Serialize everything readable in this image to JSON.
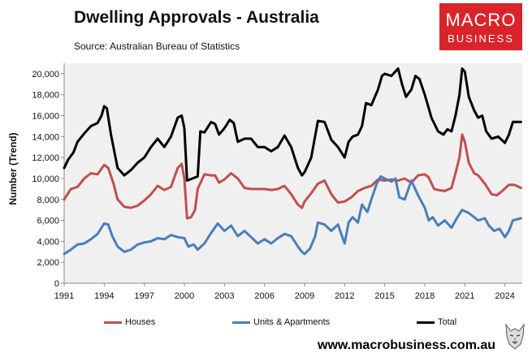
{
  "header": {
    "title": "Dwelling Approvals - Australia",
    "subtitle": "Source: Australian Bureau of Statistics"
  },
  "logo": {
    "line1": "MACRO",
    "line2": "BUSINESS",
    "color": "#d9242b"
  },
  "footer": {
    "url": "www.macrobusiness.com.au"
  },
  "chart_data": {
    "type": "line",
    "title": "Dwelling Approvals - Australia",
    "xlabel": "",
    "ylabel": "Number (Trend)",
    "xlim": [
      1991,
      2025.3
    ],
    "ylim": [
      0,
      21000
    ],
    "x_ticks": [
      1991,
      1994,
      1997,
      2000,
      2003,
      2006,
      2009,
      2012,
      2015,
      2018,
      2021,
      2024
    ],
    "y_ticks": [
      0,
      2000,
      4000,
      6000,
      8000,
      10000,
      12000,
      14000,
      16000,
      18000,
      20000
    ],
    "y_tick_labels": [
      "0",
      "2,000",
      "4,000",
      "6,000",
      "8,000",
      "10,000",
      "12,000",
      "14,000",
      "16,000",
      "18,000",
      "20,000"
    ],
    "plot_background": "#f0f0f0",
    "grid": false,
    "legend_position": "bottom",
    "series": [
      {
        "name": "Houses",
        "color": "#c0504d",
        "points": [
          [
            1991,
            8000
          ],
          [
            1991.5,
            9000
          ],
          [
            1992,
            9200
          ],
          [
            1992.5,
            10000
          ],
          [
            1993,
            10500
          ],
          [
            1993.5,
            10400
          ],
          [
            1994,
            11300
          ],
          [
            1994.3,
            11000
          ],
          [
            1994.7,
            9500
          ],
          [
            1995,
            8000
          ],
          [
            1995.5,
            7300
          ],
          [
            1996,
            7200
          ],
          [
            1996.5,
            7400
          ],
          [
            1997,
            7900
          ],
          [
            1997.5,
            8500
          ],
          [
            1998,
            9300
          ],
          [
            1998.5,
            8900
          ],
          [
            1999,
            9200
          ],
          [
            1999.5,
            11000
          ],
          [
            1999.8,
            11400
          ],
          [
            2000,
            10000
          ],
          [
            2000.2,
            6200
          ],
          [
            2000.5,
            6300
          ],
          [
            2000.8,
            7000
          ],
          [
            2001,
            9000
          ],
          [
            2001.5,
            10400
          ],
          [
            2002,
            10300
          ],
          [
            2002.3,
            10300
          ],
          [
            2002.6,
            9600
          ],
          [
            2003,
            9900
          ],
          [
            2003.5,
            10500
          ],
          [
            2004,
            10000
          ],
          [
            2004.5,
            9100
          ],
          [
            2005,
            9000
          ],
          [
            2005.5,
            9000
          ],
          [
            2006,
            9000
          ],
          [
            2006.5,
            8900
          ],
          [
            2007,
            9000
          ],
          [
            2007.5,
            9300
          ],
          [
            2008,
            8500
          ],
          [
            2008.5,
            7500
          ],
          [
            2008.8,
            7200
          ],
          [
            2009,
            7800
          ],
          [
            2009.5,
            8600
          ],
          [
            2010,
            9500
          ],
          [
            2010.5,
            9800
          ],
          [
            2011,
            8500
          ],
          [
            2011.5,
            7700
          ],
          [
            2012,
            7800
          ],
          [
            2012.5,
            8200
          ],
          [
            2013,
            8800
          ],
          [
            2013.5,
            9100
          ],
          [
            2014,
            9300
          ],
          [
            2014.5,
            9900
          ],
          [
            2015,
            9800
          ],
          [
            2015.5,
            9900
          ],
          [
            2016,
            9800
          ],
          [
            2016.5,
            10000
          ],
          [
            2017,
            9600
          ],
          [
            2017.5,
            10300
          ],
          [
            2018,
            10400
          ],
          [
            2018.3,
            10100
          ],
          [
            2018.7,
            9000
          ],
          [
            2019,
            8900
          ],
          [
            2019.5,
            8800
          ],
          [
            2020,
            9100
          ],
          [
            2020.3,
            10500
          ],
          [
            2020.6,
            12000
          ],
          [
            2020.8,
            14200
          ],
          [
            2021,
            13500
          ],
          [
            2021.3,
            11500
          ],
          [
            2021.7,
            10500
          ],
          [
            2022,
            10300
          ],
          [
            2022.5,
            9500
          ],
          [
            2023,
            8500
          ],
          [
            2023.4,
            8400
          ],
          [
            2023.8,
            8800
          ],
          [
            2024.3,
            9400
          ],
          [
            2024.7,
            9400
          ],
          [
            2025.2,
            9100
          ]
        ]
      },
      {
        "name": "Units & Apartments",
        "color": "#4a7ebb",
        "points": [
          [
            1991,
            2800
          ],
          [
            1991.5,
            3200
          ],
          [
            1992,
            3700
          ],
          [
            1992.5,
            3800
          ],
          [
            1993,
            4200
          ],
          [
            1993.5,
            4700
          ],
          [
            1994,
            5700
          ],
          [
            1994.3,
            5600
          ],
          [
            1994.6,
            4500
          ],
          [
            1995,
            3500
          ],
          [
            1995.5,
            3000
          ],
          [
            1996,
            3200
          ],
          [
            1996.5,
            3700
          ],
          [
            1997,
            3900
          ],
          [
            1997.5,
            4000
          ],
          [
            1998,
            4300
          ],
          [
            1998.5,
            4200
          ],
          [
            1999,
            4600
          ],
          [
            1999.5,
            4400
          ],
          [
            2000,
            4300
          ],
          [
            2000.3,
            3500
          ],
          [
            2000.7,
            3700
          ],
          [
            2001,
            3200
          ],
          [
            2001.5,
            3800
          ],
          [
            2002,
            4800
          ],
          [
            2002.5,
            5700
          ],
          [
            2003,
            5000
          ],
          [
            2003.5,
            5500
          ],
          [
            2004,
            4500
          ],
          [
            2004.5,
            5000
          ],
          [
            2005,
            4400
          ],
          [
            2005.5,
            3800
          ],
          [
            2006,
            4200
          ],
          [
            2006.5,
            3800
          ],
          [
            2007,
            4300
          ],
          [
            2007.5,
            4700
          ],
          [
            2008,
            4500
          ],
          [
            2008.5,
            3500
          ],
          [
            2008.8,
            3000
          ],
          [
            2009,
            2800
          ],
          [
            2009.4,
            3300
          ],
          [
            2009.8,
            4500
          ],
          [
            2010,
            5800
          ],
          [
            2010.5,
            5600
          ],
          [
            2011,
            5000
          ],
          [
            2011.5,
            5600
          ],
          [
            2012,
            3800
          ],
          [
            2012.3,
            5800
          ],
          [
            2012.6,
            6300
          ],
          [
            2013,
            5800
          ],
          [
            2013.3,
            7500
          ],
          [
            2013.7,
            6800
          ],
          [
            2014,
            8000
          ],
          [
            2014.4,
            9500
          ],
          [
            2014.7,
            10200
          ],
          [
            2015,
            10000
          ],
          [
            2015.5,
            9700
          ],
          [
            2015.8,
            10000
          ],
          [
            2016.1,
            8200
          ],
          [
            2016.5,
            8000
          ],
          [
            2017,
            9800
          ],
          [
            2017.5,
            8400
          ],
          [
            2018,
            7200
          ],
          [
            2018.3,
            6000
          ],
          [
            2018.6,
            6300
          ],
          [
            2019,
            5500
          ],
          [
            2019.5,
            6000
          ],
          [
            2020,
            5300
          ],
          [
            2020.4,
            6200
          ],
          [
            2020.8,
            7000
          ],
          [
            2021.3,
            6700
          ],
          [
            2021.7,
            6300
          ],
          [
            2022,
            6000
          ],
          [
            2022.5,
            6200
          ],
          [
            2022.8,
            5500
          ],
          [
            2023.2,
            5000
          ],
          [
            2023.6,
            5200
          ],
          [
            2024,
            4400
          ],
          [
            2024.3,
            5000
          ],
          [
            2024.6,
            6000
          ],
          [
            2025.2,
            6200
          ]
        ]
      },
      {
        "name": "Total",
        "color": "#000000",
        "points": [
          [
            1991,
            11000
          ],
          [
            1991.3,
            11800
          ],
          [
            1991.7,
            12500
          ],
          [
            1992,
            13500
          ],
          [
            1992.5,
            14300
          ],
          [
            1993,
            15000
          ],
          [
            1993.5,
            15300
          ],
          [
            1993.8,
            16000
          ],
          [
            1994,
            16900
          ],
          [
            1994.2,
            16700
          ],
          [
            1994.5,
            14200
          ],
          [
            1995,
            11000
          ],
          [
            1995.5,
            10300
          ],
          [
            1996,
            10800
          ],
          [
            1996.5,
            11500
          ],
          [
            1997,
            12000
          ],
          [
            1997.5,
            13000
          ],
          [
            1998,
            13800
          ],
          [
            1998.5,
            13000
          ],
          [
            1999,
            14000
          ],
          [
            1999.5,
            15800
          ],
          [
            1999.8,
            16000
          ],
          [
            2000,
            14800
          ],
          [
            2000.2,
            9800
          ],
          [
            2000.6,
            10000
          ],
          [
            2001,
            10200
          ],
          [
            2001.2,
            14500
          ],
          [
            2001.5,
            14400
          ],
          [
            2002,
            15400
          ],
          [
            2002.3,
            15200
          ],
          [
            2002.6,
            14200
          ],
          [
            2003,
            14800
          ],
          [
            2003.4,
            15600
          ],
          [
            2003.7,
            15300
          ],
          [
            2004,
            13500
          ],
          [
            2004.5,
            13800
          ],
          [
            2005,
            13800
          ],
          [
            2005.5,
            13000
          ],
          [
            2006,
            13000
          ],
          [
            2006.5,
            12600
          ],
          [
            2007,
            13000
          ],
          [
            2007.5,
            14100
          ],
          [
            2008,
            13000
          ],
          [
            2008.5,
            11000
          ],
          [
            2008.8,
            10300
          ],
          [
            2009,
            10600
          ],
          [
            2009.5,
            12000
          ],
          [
            2010,
            15500
          ],
          [
            2010.5,
            15400
          ],
          [
            2011,
            13700
          ],
          [
            2011.5,
            13000
          ],
          [
            2012,
            12000
          ],
          [
            2012.3,
            13500
          ],
          [
            2012.6,
            14000
          ],
          [
            2013,
            14200
          ],
          [
            2013.3,
            15000
          ],
          [
            2013.6,
            17200
          ],
          [
            2014,
            17000
          ],
          [
            2014.5,
            18500
          ],
          [
            2014.8,
            19800
          ],
          [
            2015,
            20000
          ],
          [
            2015.5,
            19800
          ],
          [
            2016,
            20500
          ],
          [
            2016.3,
            19000
          ],
          [
            2016.6,
            17800
          ],
          [
            2017,
            18500
          ],
          [
            2017.3,
            19800
          ],
          [
            2017.6,
            19500
          ],
          [
            2018,
            18000
          ],
          [
            2018.5,
            15800
          ],
          [
            2019,
            14500
          ],
          [
            2019.4,
            14200
          ],
          [
            2019.7,
            14700
          ],
          [
            2020,
            14500
          ],
          [
            2020.3,
            16000
          ],
          [
            2020.6,
            18000
          ],
          [
            2020.8,
            20500
          ],
          [
            2021,
            20200
          ],
          [
            2021.3,
            17800
          ],
          [
            2021.7,
            16500
          ],
          [
            2022,
            15800
          ],
          [
            2022.3,
            16000
          ],
          [
            2022.6,
            14500
          ],
          [
            2023,
            13800
          ],
          [
            2023.5,
            14000
          ],
          [
            2024,
            13400
          ],
          [
            2024.3,
            14200
          ],
          [
            2024.6,
            15400
          ],
          [
            2025.2,
            15400
          ]
        ]
      }
    ]
  }
}
